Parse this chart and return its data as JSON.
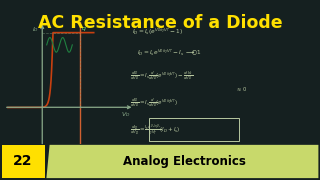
{
  "title": "AC Resistance of a Diode",
  "title_color": "#FFE000",
  "bg_color": "#152020",
  "bottom_bar_yellow": "#FFE000",
  "bottom_bar_green": "#c8d96b",
  "bottom_bar_number": "22",
  "bottom_bar_text": "Analog Electronics",
  "axis_color": "#8aaa8a",
  "curve_color": "#c84010",
  "sine_color": "#208040",
  "eq_color": "#b8c8a0",
  "vd_min": -0.5,
  "vd_max": 0.75,
  "id_min": -0.025,
  "id_max": 0.38,
  "Is": 0.001,
  "eta_vt": 0.026,
  "q_vd": 0.55
}
